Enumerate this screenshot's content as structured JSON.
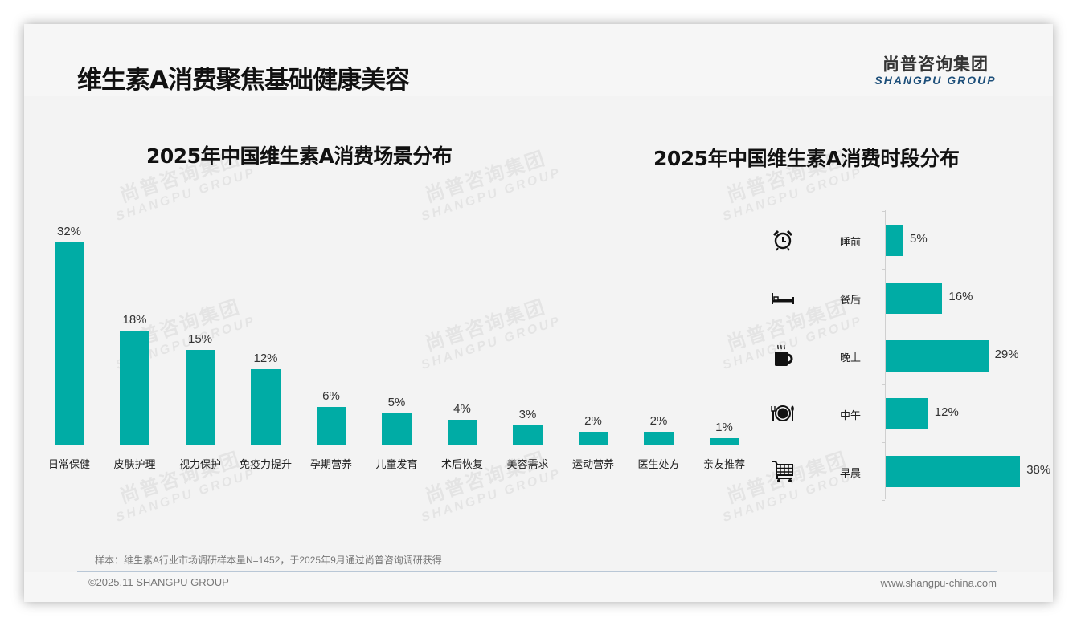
{
  "header": {
    "title": "维生素A消费聚焦基础健康美容",
    "logo_cn": "尚普咨询集团",
    "logo_en": "SHANGPU GROUP"
  },
  "watermark": {
    "cn": "尚普咨询集团",
    "en": "SHANGPU GROUP"
  },
  "colors": {
    "bar": "#00aca5",
    "logo_en": "#1d4f7a"
  },
  "chart_data": [
    {
      "type": "bar",
      "title": "2025年中国维生素A消费场景分布",
      "categories": [
        "日常保健",
        "皮肤护理",
        "视力保护",
        "免疫力提升",
        "孕期营养",
        "儿童发育",
        "术后恢复",
        "美容需求",
        "运动营养",
        "医生处方",
        "亲友推荐"
      ],
      "values": [
        32,
        18,
        15,
        12,
        6,
        5,
        4,
        3,
        2,
        2,
        1
      ],
      "labels": [
        "32%",
        "18%",
        "15%",
        "12%",
        "6%",
        "5%",
        "4%",
        "3%",
        "2%",
        "2%",
        "1%"
      ],
      "unit": "%",
      "xlabel": "",
      "ylabel": "",
      "ylim": [
        0,
        35
      ],
      "grid": false,
      "legend": "none"
    },
    {
      "type": "bar",
      "orientation": "horizontal",
      "title": "2025年中国维生素A消费时段分布",
      "categories": [
        "睡前",
        "餐后",
        "晚上",
        "中午",
        "早晨"
      ],
      "values": [
        5,
        16,
        29,
        12,
        38
      ],
      "labels": [
        "5%",
        "16%",
        "29%",
        "12%",
        "38%"
      ],
      "icons": [
        "alarm-clock-icon",
        "bed-icon",
        "coffee-mug-icon",
        "plate-cutlery-icon",
        "shopping-cart-icon"
      ],
      "unit": "%",
      "xlim": [
        0,
        40
      ],
      "grid": false,
      "legend": "none"
    }
  ],
  "footer": {
    "note": "样本：维生素A行业市场调研样本量N=1452，于2025年9月通过尚普咨询调研获得",
    "copyright": "©2025.11 SHANGPU GROUP",
    "website": "www.shangpu-china.com"
  }
}
